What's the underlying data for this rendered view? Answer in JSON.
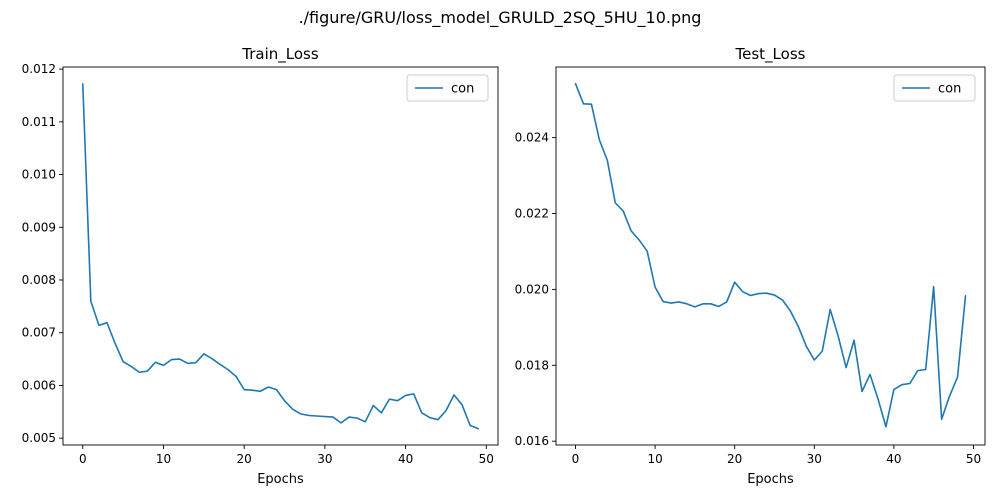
{
  "figure": {
    "suptitle": "./figure/GRU/loss_model_GRULD_2SQ_5HU_10.png"
  },
  "colors": {
    "series": "#1f77b4",
    "axes": "#000000",
    "legend_border": "#cccccc"
  },
  "chart_data": [
    {
      "type": "line",
      "title": "Train_Loss",
      "xlabel": "Epochs",
      "ylabel": "",
      "grid": false,
      "legend": "top-right",
      "xlim": [
        -2.45,
        51.45
      ],
      "ylim": [
        0.00487,
        0.01204
      ],
      "xticks": [
        0,
        10,
        20,
        30,
        40,
        50
      ],
      "xtick_labels": [
        "0",
        "10",
        "20",
        "30",
        "40",
        "50"
      ],
      "yticks": [
        0.005,
        0.006,
        0.007,
        0.008,
        0.009,
        0.01,
        0.011,
        0.012
      ],
      "ytick_labels": [
        "0.005",
        "0.006",
        "0.007",
        "0.008",
        "0.009",
        "0.010",
        "0.011",
        "0.012"
      ],
      "series": [
        {
          "name": "con",
          "x": [
            0,
            1,
            2,
            3,
            4,
            5,
            6,
            7,
            8,
            9,
            10,
            11,
            12,
            13,
            14,
            15,
            16,
            17,
            18,
            19,
            20,
            21,
            22,
            23,
            24,
            25,
            26,
            27,
            28,
            29,
            30,
            31,
            32,
            33,
            34,
            35,
            36,
            37,
            38,
            39,
            40,
            41,
            42,
            43,
            44,
            45,
            46,
            47,
            48,
            49
          ],
          "values": [
            0.01172,
            0.0076,
            0.00714,
            0.00719,
            0.0068,
            0.00645,
            0.00636,
            0.00625,
            0.00627,
            0.00644,
            0.00638,
            0.00649,
            0.0065,
            0.00642,
            0.00643,
            0.0066,
            0.00651,
            0.0064,
            0.0063,
            0.00617,
            0.00592,
            0.00591,
            0.00589,
            0.00597,
            0.00592,
            0.00571,
            0.00555,
            0.00546,
            0.00543,
            0.00542,
            0.00541,
            0.0054,
            0.00529,
            0.0054,
            0.00538,
            0.00531,
            0.00562,
            0.00548,
            0.00574,
            0.00571,
            0.00581,
            0.00584,
            0.00548,
            0.00539,
            0.00535,
            0.00552,
            0.00582,
            0.00563,
            0.00524,
            0.00518
          ]
        }
      ]
    },
    {
      "type": "line",
      "title": "Test_Loss",
      "xlabel": "Epochs",
      "ylabel": "",
      "grid": false,
      "legend": "top-right",
      "xlim": [
        -2.45,
        51.45
      ],
      "ylim": [
        0.0159,
        0.02586
      ],
      "xticks": [
        0,
        10,
        20,
        30,
        40,
        50
      ],
      "xtick_labels": [
        "0",
        "10",
        "20",
        "30",
        "40",
        "50"
      ],
      "yticks": [
        0.016,
        0.018,
        0.02,
        0.022,
        0.024
      ],
      "ytick_labels": [
        "0.016",
        "0.018",
        "0.020",
        "0.022",
        "0.024"
      ],
      "series": [
        {
          "name": "con",
          "x": [
            0,
            1,
            2,
            3,
            4,
            5,
            6,
            7,
            8,
            9,
            10,
            11,
            12,
            13,
            14,
            15,
            16,
            17,
            18,
            19,
            20,
            21,
            22,
            23,
            24,
            25,
            26,
            27,
            28,
            29,
            30,
            31,
            32,
            33,
            34,
            35,
            36,
            37,
            38,
            39,
            40,
            41,
            42,
            43,
            44,
            45,
            46,
            47,
            48,
            49
          ],
          "values": [
            0.02542,
            0.02489,
            0.02488,
            0.02394,
            0.0234,
            0.02228,
            0.02206,
            0.02154,
            0.0213,
            0.02101,
            0.02006,
            0.01968,
            0.01964,
            0.01967,
            0.01962,
            0.01954,
            0.01962,
            0.01962,
            0.01955,
            0.01967,
            0.02019,
            0.01994,
            0.01984,
            0.01989,
            0.0199,
            0.01985,
            0.01972,
            0.01943,
            0.01902,
            0.0185,
            0.01814,
            0.01837,
            0.01947,
            0.01877,
            0.01794,
            0.01866,
            0.01731,
            0.01776,
            0.01712,
            0.01638,
            0.01736,
            0.01749,
            0.01752,
            0.01786,
            0.01789,
            0.02007,
            0.01658,
            0.01719,
            0.01769,
            0.01983
          ]
        }
      ]
    }
  ]
}
